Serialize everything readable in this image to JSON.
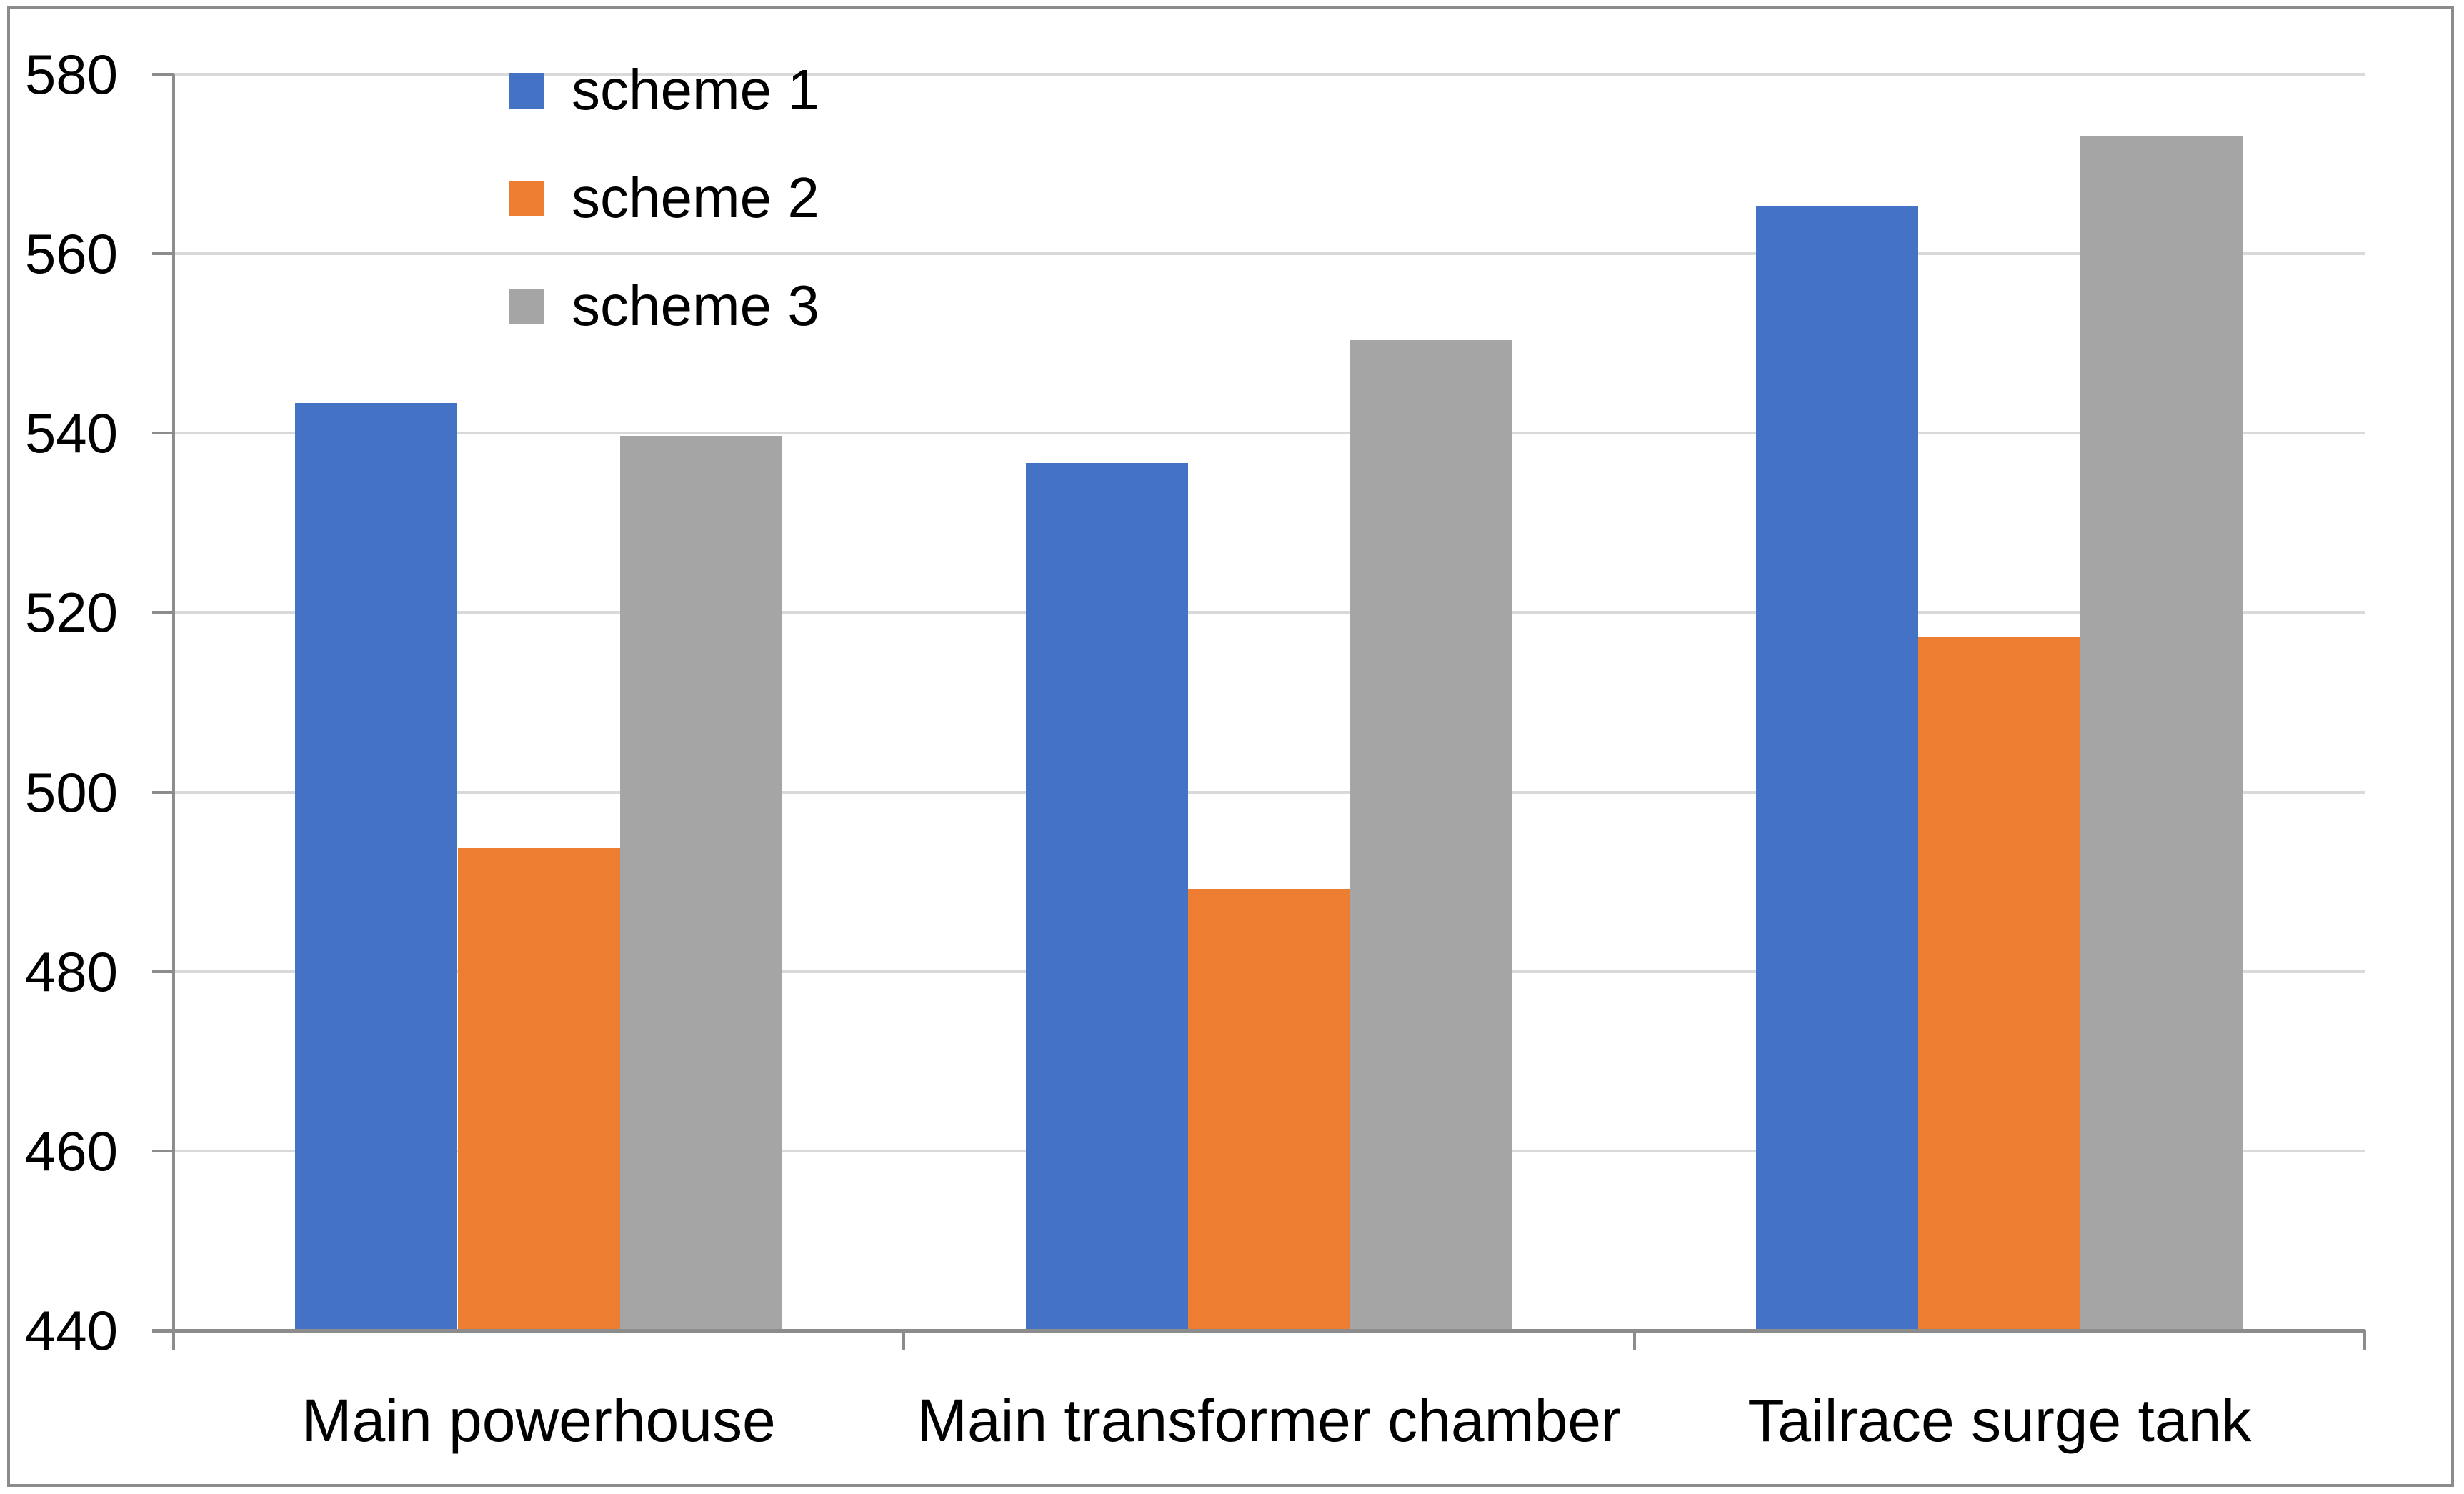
{
  "chart_data": {
    "type": "bar",
    "title": "",
    "categories": [
      "Main powerhouse",
      "Main transformer chamber",
      "Tailrace surge tank"
    ],
    "series": [
      {
        "name": "scheme 1",
        "color": "#4472C4",
        "values": [
          543.3695,
          536.647,
          565.229
        ],
        "labels": [
          "543.3695",
          "536.647",
          "565.229"
        ]
      },
      {
        "name": "scheme 2",
        "color": "#ED7D31",
        "values": [
          493.762,
          489.204,
          517.279
        ],
        "labels": [
          "493.762",
          "489.204",
          "517.279"
        ]
      },
      {
        "name": "scheme 3",
        "color": "#A5A5A5",
        "values": [
          539.73,
          550.394,
          573.034
        ],
        "labels": [
          "539.73",
          "550.394",
          "573.034"
        ]
      }
    ],
    "y_axis": {
      "min": 440,
      "max": 580,
      "step": 20,
      "tick_labels": [
        "440",
        "460",
        "480",
        "500",
        "520",
        "540",
        "560",
        "580"
      ]
    },
    "x_axis": {
      "labels": [
        "Main powerhouse",
        "Main transformer chamber",
        "Tailrace surge tank"
      ]
    },
    "legend": {
      "position": "top-left-inside",
      "entries": [
        "scheme 1",
        "scheme 2",
        "scheme 3"
      ]
    },
    "grid": true,
    "colors": {
      "gridline": "#D9D9D9",
      "axis": "#8C8C8C",
      "frame_border": "#8C8C8C",
      "text": "#000000",
      "background": "#FFFFFF"
    }
  }
}
